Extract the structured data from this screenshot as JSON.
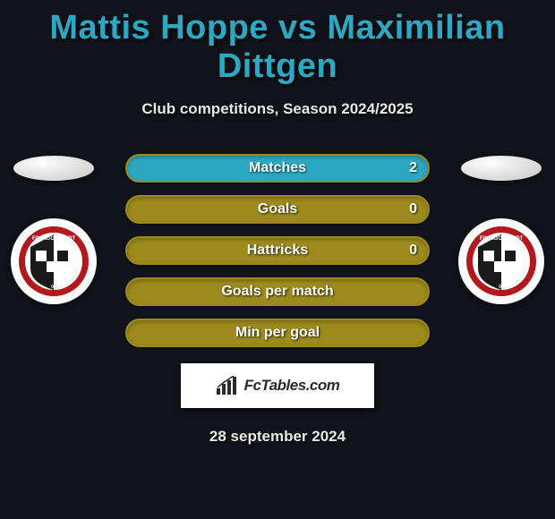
{
  "title": "Mattis Hoppe vs Maximilian Dittgen",
  "title_color": "#2ca8c2",
  "subtitle": "Club competitions, Season 2024/2025",
  "background_color": "#10131a",
  "players": {
    "left": {
      "club": "FC Ingolstadt 04",
      "badge_primary": "#b3191c",
      "badge_accent": "#1a1a1a"
    },
    "right": {
      "club": "FC Ingolstadt 04",
      "badge_primary": "#b3191c",
      "badge_accent": "#1a1a1a"
    }
  },
  "stats": [
    {
      "label": "Matches",
      "value": "2",
      "fill": "#2ca8c2",
      "border": "#9c8a1c"
    },
    {
      "label": "Goals",
      "value": "0",
      "fill": "#9c8a1c",
      "border": "#9c8a1c"
    },
    {
      "label": "Hattricks",
      "value": "0",
      "fill": "#9c8a1c",
      "border": "#9c8a1c"
    },
    {
      "label": "Goals per match",
      "value": "",
      "fill": "#9c8a1c",
      "border": "#9c8a1c"
    },
    {
      "label": "Min per goal",
      "value": "",
      "fill": "#9c8a1c",
      "border": "#9c8a1c"
    }
  ],
  "pill": {
    "height": 32,
    "radius": 16,
    "label_fontsize": 16
  },
  "watermark": {
    "text": "FcTables.com",
    "icon": "bars-icon"
  },
  "date": "28 september 2024"
}
